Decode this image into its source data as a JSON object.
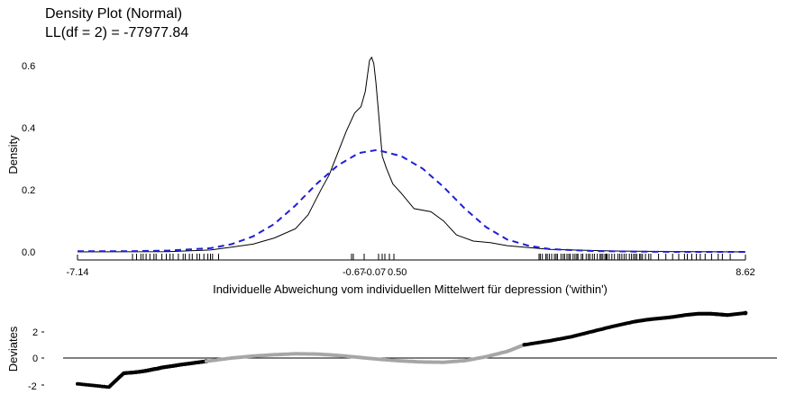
{
  "chart_data": [
    {
      "type": "line",
      "title": "Density Plot (Normal)",
      "subtitle": "LL(df = 2) = -77977.84",
      "xlabel": "Individuelle Abweichung vom individuellen Mittelwert für depression ('within')",
      "ylabel": "Density",
      "xlim": [
        -7.14,
        8.62
      ],
      "ylim": [
        0,
        0.65
      ],
      "x_ticks": [
        "-7.14",
        "-0.67",
        "-0.07",
        "0.50",
        "8.62"
      ],
      "y_ticks": [
        "0.0",
        "0.2",
        "0.4",
        "0.6"
      ],
      "grid": false,
      "series": [
        {
          "style": "solid-black",
          "x": [
            -7.14,
            -5.0,
            -4.0,
            -3.0,
            -2.5,
            -2.0,
            -1.7,
            -1.4,
            -1.2,
            -1.0,
            -0.8,
            -0.6,
            -0.45,
            -0.35,
            -0.3,
            -0.25,
            -0.2,
            -0.15,
            -0.1,
            -0.05,
            0.0,
            0.05,
            0.15,
            0.3,
            0.5,
            0.8,
            1.2,
            1.5,
            1.8,
            2.2,
            2.6,
            3.0,
            4.0,
            5.5,
            7.0,
            8.62
          ],
          "y": [
            0.0,
            0.001,
            0.006,
            0.025,
            0.045,
            0.075,
            0.12,
            0.2,
            0.25,
            0.32,
            0.39,
            0.45,
            0.47,
            0.52,
            0.57,
            0.62,
            0.63,
            0.61,
            0.55,
            0.47,
            0.39,
            0.31,
            0.27,
            0.22,
            0.19,
            0.14,
            0.13,
            0.1,
            0.055,
            0.035,
            0.03,
            0.02,
            0.008,
            0.003,
            0.001,
            0.0
          ]
        },
        {
          "style": "dashed-blue",
          "x": [
            -7.14,
            -6.0,
            -5.0,
            -4.0,
            -3.5,
            -3.0,
            -2.5,
            -2.0,
            -1.5,
            -1.0,
            -0.5,
            -0.07,
            0.5,
            1.0,
            1.5,
            2.0,
            2.5,
            3.0,
            3.5,
            4.0,
            5.0,
            6.0,
            7.0,
            8.62
          ],
          "y": [
            0.002,
            0.002,
            0.004,
            0.012,
            0.025,
            0.05,
            0.09,
            0.15,
            0.22,
            0.28,
            0.32,
            0.33,
            0.31,
            0.27,
            0.21,
            0.14,
            0.08,
            0.04,
            0.02,
            0.009,
            0.003,
            0.001,
            0.0,
            0.0
          ]
        }
      ]
    },
    {
      "type": "scatter",
      "ylabel": "Deviates",
      "y_ticks": [
        "2",
        "0",
        "-2"
      ],
      "ylim": [
        -2.3,
        3.6
      ],
      "series": [
        {
          "style": "black-points-tails",
          "x": [
            -7.14,
            -6.4,
            -6.05,
            -5.85,
            -5.7,
            -5.55,
            -5.45,
            -5.35,
            -5.25,
            -5.15,
            -5.0,
            -4.85,
            -4.7,
            -4.5,
            -4.3,
            -4.1
          ],
          "y": [
            -1.95,
            -2.2,
            -1.15,
            -1.1,
            -1.05,
            -0.98,
            -0.92,
            -0.85,
            -0.8,
            -0.72,
            -0.65,
            -0.58,
            -0.5,
            -0.42,
            -0.33,
            -0.25
          ]
        },
        {
          "style": "gray-points-center",
          "x": [
            -4.1,
            -3.5,
            -3.0,
            -2.5,
            -2.0,
            -1.5,
            -1.0,
            -0.5,
            0.0,
            0.5,
            1.0,
            1.5,
            2.0,
            2.5,
            3.0,
            3.4
          ],
          "y": [
            -0.25,
            0.0,
            0.15,
            0.25,
            0.32,
            0.3,
            0.2,
            0.05,
            -0.1,
            -0.22,
            -0.3,
            -0.32,
            -0.2,
            0.1,
            0.5,
            1.0
          ]
        },
        {
          "style": "black-points-tails",
          "x": [
            3.4,
            4.0,
            4.5,
            5.0,
            5.5,
            6.0,
            6.3,
            6.6,
            6.9,
            7.2,
            7.5,
            7.8,
            8.0,
            8.2,
            8.62
          ],
          "y": [
            1.0,
            1.3,
            1.6,
            2.0,
            2.4,
            2.75,
            2.9,
            3.0,
            3.1,
            3.25,
            3.35,
            3.35,
            3.3,
            3.25,
            3.4
          ]
        }
      ]
    }
  ]
}
